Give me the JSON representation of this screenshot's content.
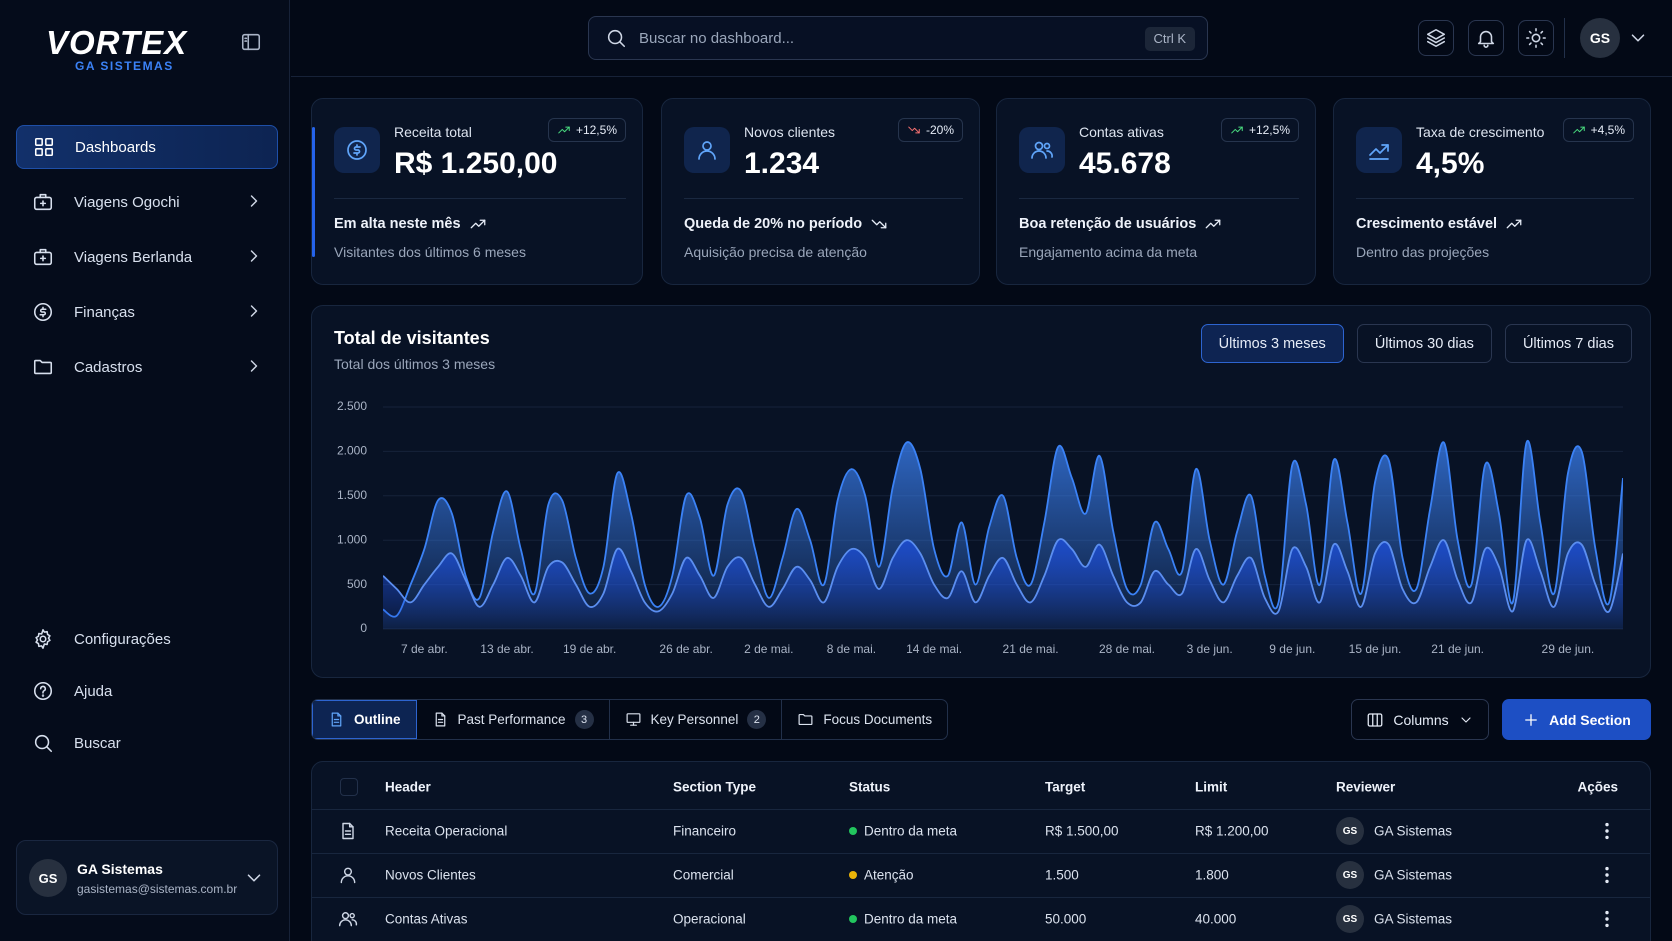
{
  "sidebar": {
    "brand": "VORTEX",
    "brand_sub": "GA SISTEMAS",
    "active_nav": 0,
    "nav": [
      "Dashboards",
      "Viagens Ogochi",
      "Viagens Berlanda",
      "Finanças",
      "Cadastros"
    ],
    "footer_nav": [
      "Configurações",
      "Ajuda",
      "Buscar"
    ],
    "user": {
      "initials": "GS",
      "name": "GA Sistemas",
      "email": "gasistemas@sistemas.com.br"
    }
  },
  "header": {
    "search_placeholder": "Buscar no dashboard...",
    "shortcut": "Ctrl K",
    "avatar": "GS"
  },
  "kpis": [
    {
      "title": "Receita total",
      "value": "R$ 1.250,00",
      "badge": "+12,5%",
      "trend": "up",
      "headline": "Em alta neste mês",
      "sub": "Visitantes dos últimos 6 meses"
    },
    {
      "title": "Novos clientes",
      "value": "1.234",
      "badge": "-20%",
      "trend": "down",
      "headline": "Queda de 20% no período",
      "sub": "Aquisição precisa de atenção"
    },
    {
      "title": "Contas ativas",
      "value": "45.678",
      "badge": "+12,5%",
      "trend": "up",
      "headline": "Boa retenção de usuários",
      "sub": "Engajamento acima da meta"
    },
    {
      "title": "Taxa de crescimento",
      "value": "4,5%",
      "badge": "+4,5%",
      "trend": "up",
      "headline": "Crescimento estável",
      "sub": "Dentro das projeções"
    }
  ],
  "chart_data": {
    "type": "area",
    "title": "Total de visitantes",
    "subtitle": "Total dos últimos 3 meses",
    "ranges": [
      "Últimos 3 meses",
      "Últimos 30 dias",
      "Últimos 7 dias"
    ],
    "active_range": 0,
    "ylim": [
      0,
      2500
    ],
    "yticks": [
      0,
      500,
      {
        "value": 1000,
        "label": "1.000"
      },
      {
        "value": 1500,
        "label": "1.500"
      },
      {
        "value": 2000,
        "label": "2.000"
      },
      {
        "value": 2500,
        "label": "2.500"
      }
    ],
    "grid": true,
    "categories": [
      null,
      null,
      null,
      "7 de abr.",
      null,
      null,
      null,
      null,
      null,
      "13 de abr.",
      null,
      null,
      null,
      null,
      null,
      "19 de abr.",
      null,
      null,
      null,
      null,
      null,
      null,
      "26 de abr.",
      null,
      null,
      null,
      null,
      null,
      "2 de mai.",
      null,
      null,
      null,
      null,
      null,
      "8 de mai.",
      null,
      null,
      null,
      null,
      null,
      "14 de mai.",
      null,
      null,
      null,
      null,
      null,
      null,
      "21 de mai.",
      null,
      null,
      null,
      null,
      null,
      null,
      "28 de mai.",
      null,
      null,
      null,
      null,
      null,
      "3 de jun.",
      null,
      null,
      null,
      null,
      null,
      "9 de jun.",
      null,
      null,
      null,
      null,
      null,
      "15 de jun.",
      null,
      null,
      null,
      null,
      null,
      "21 de jun.",
      null,
      null,
      null,
      null,
      null,
      null,
      null,
      "29 de jun.",
      null,
      null,
      null,
      null
    ],
    "series": [
      {
        "color": "#3b82f6",
        "values": [
          220,
          150,
          500,
          900,
          1450,
          1300,
          600,
          350,
          1100,
          1550,
          900,
          400,
          1400,
          1450,
          800,
          400,
          700,
          1750,
          1300,
          500,
          250,
          600,
          1500,
          1250,
          600,
          1400,
          1550,
          900,
          350,
          800,
          1350,
          1000,
          500,
          1450,
          1800,
          1500,
          700,
          1600,
          2100,
          1800,
          900,
          600,
          1200,
          500,
          1150,
          1500,
          800,
          500,
          1200,
          2050,
          1700,
          1300,
          1950,
          1100,
          450,
          500,
          1200,
          900,
          650,
          1800,
          1000,
          500,
          1100,
          1500,
          600,
          300,
          1850,
          1400,
          500,
          1900,
          1200,
          400,
          1650,
          1900,
          800,
          450,
          1350,
          2100,
          1000,
          500,
          1850,
          1300,
          300,
          2100,
          1200,
          400,
          1750,
          2000,
          900,
          300,
          1700
        ]
      },
      {
        "color": "#1d4ed8",
        "values": [
          600,
          450,
          300,
          500,
          700,
          850,
          550,
          250,
          500,
          800,
          600,
          300,
          700,
          750,
          500,
          250,
          400,
          900,
          650,
          300,
          200,
          400,
          800,
          600,
          350,
          700,
          800,
          500,
          250,
          450,
          700,
          550,
          300,
          700,
          900,
          800,
          450,
          800,
          1000,
          850,
          500,
          350,
          650,
          300,
          600,
          800,
          500,
          300,
          600,
          1000,
          900,
          700,
          950,
          600,
          300,
          300,
          650,
          500,
          400,
          900,
          550,
          300,
          600,
          800,
          350,
          200,
          900,
          700,
          300,
          950,
          650,
          250,
          850,
          950,
          450,
          300,
          700,
          1000,
          550,
          300,
          900,
          700,
          200,
          1000,
          650,
          250,
          850,
          950,
          500,
          200,
          850
        ]
      }
    ]
  },
  "tabs": [
    {
      "label": "Outline"
    },
    {
      "label": "Past Performance",
      "count": 3
    },
    {
      "label": "Key Personnel",
      "count": 2
    },
    {
      "label": "Focus Documents"
    }
  ],
  "active_tab": 0,
  "actions": {
    "columns": "Columns",
    "add": "Add Section"
  },
  "table": {
    "columns": [
      "Header",
      "Section Type",
      "Status",
      "Target",
      "Limit",
      "Reviewer",
      "Ações"
    ],
    "rows": [
      {
        "header": "Receita Operacional",
        "type": "Financeiro",
        "status": "Dentro da meta",
        "status_color": "#22c55e",
        "target": "R$ 1.500,00",
        "limit": "R$ 1.200,00",
        "reviewer_initials": "GS",
        "reviewer": "GA Sistemas"
      },
      {
        "header": "Novos Clientes",
        "type": "Comercial",
        "status": "Atenção",
        "status_color": "#eab308",
        "target": "1.500",
        "limit": "1.800",
        "reviewer_initials": "GS",
        "reviewer": "GA Sistemas"
      },
      {
        "header": "Contas Ativas",
        "type": "Operacional",
        "status": "Dentro da meta",
        "status_color": "#22c55e",
        "target": "50.000",
        "limit": "40.000",
        "reviewer_initials": "GS",
        "reviewer": "GA Sistemas"
      }
    ]
  }
}
